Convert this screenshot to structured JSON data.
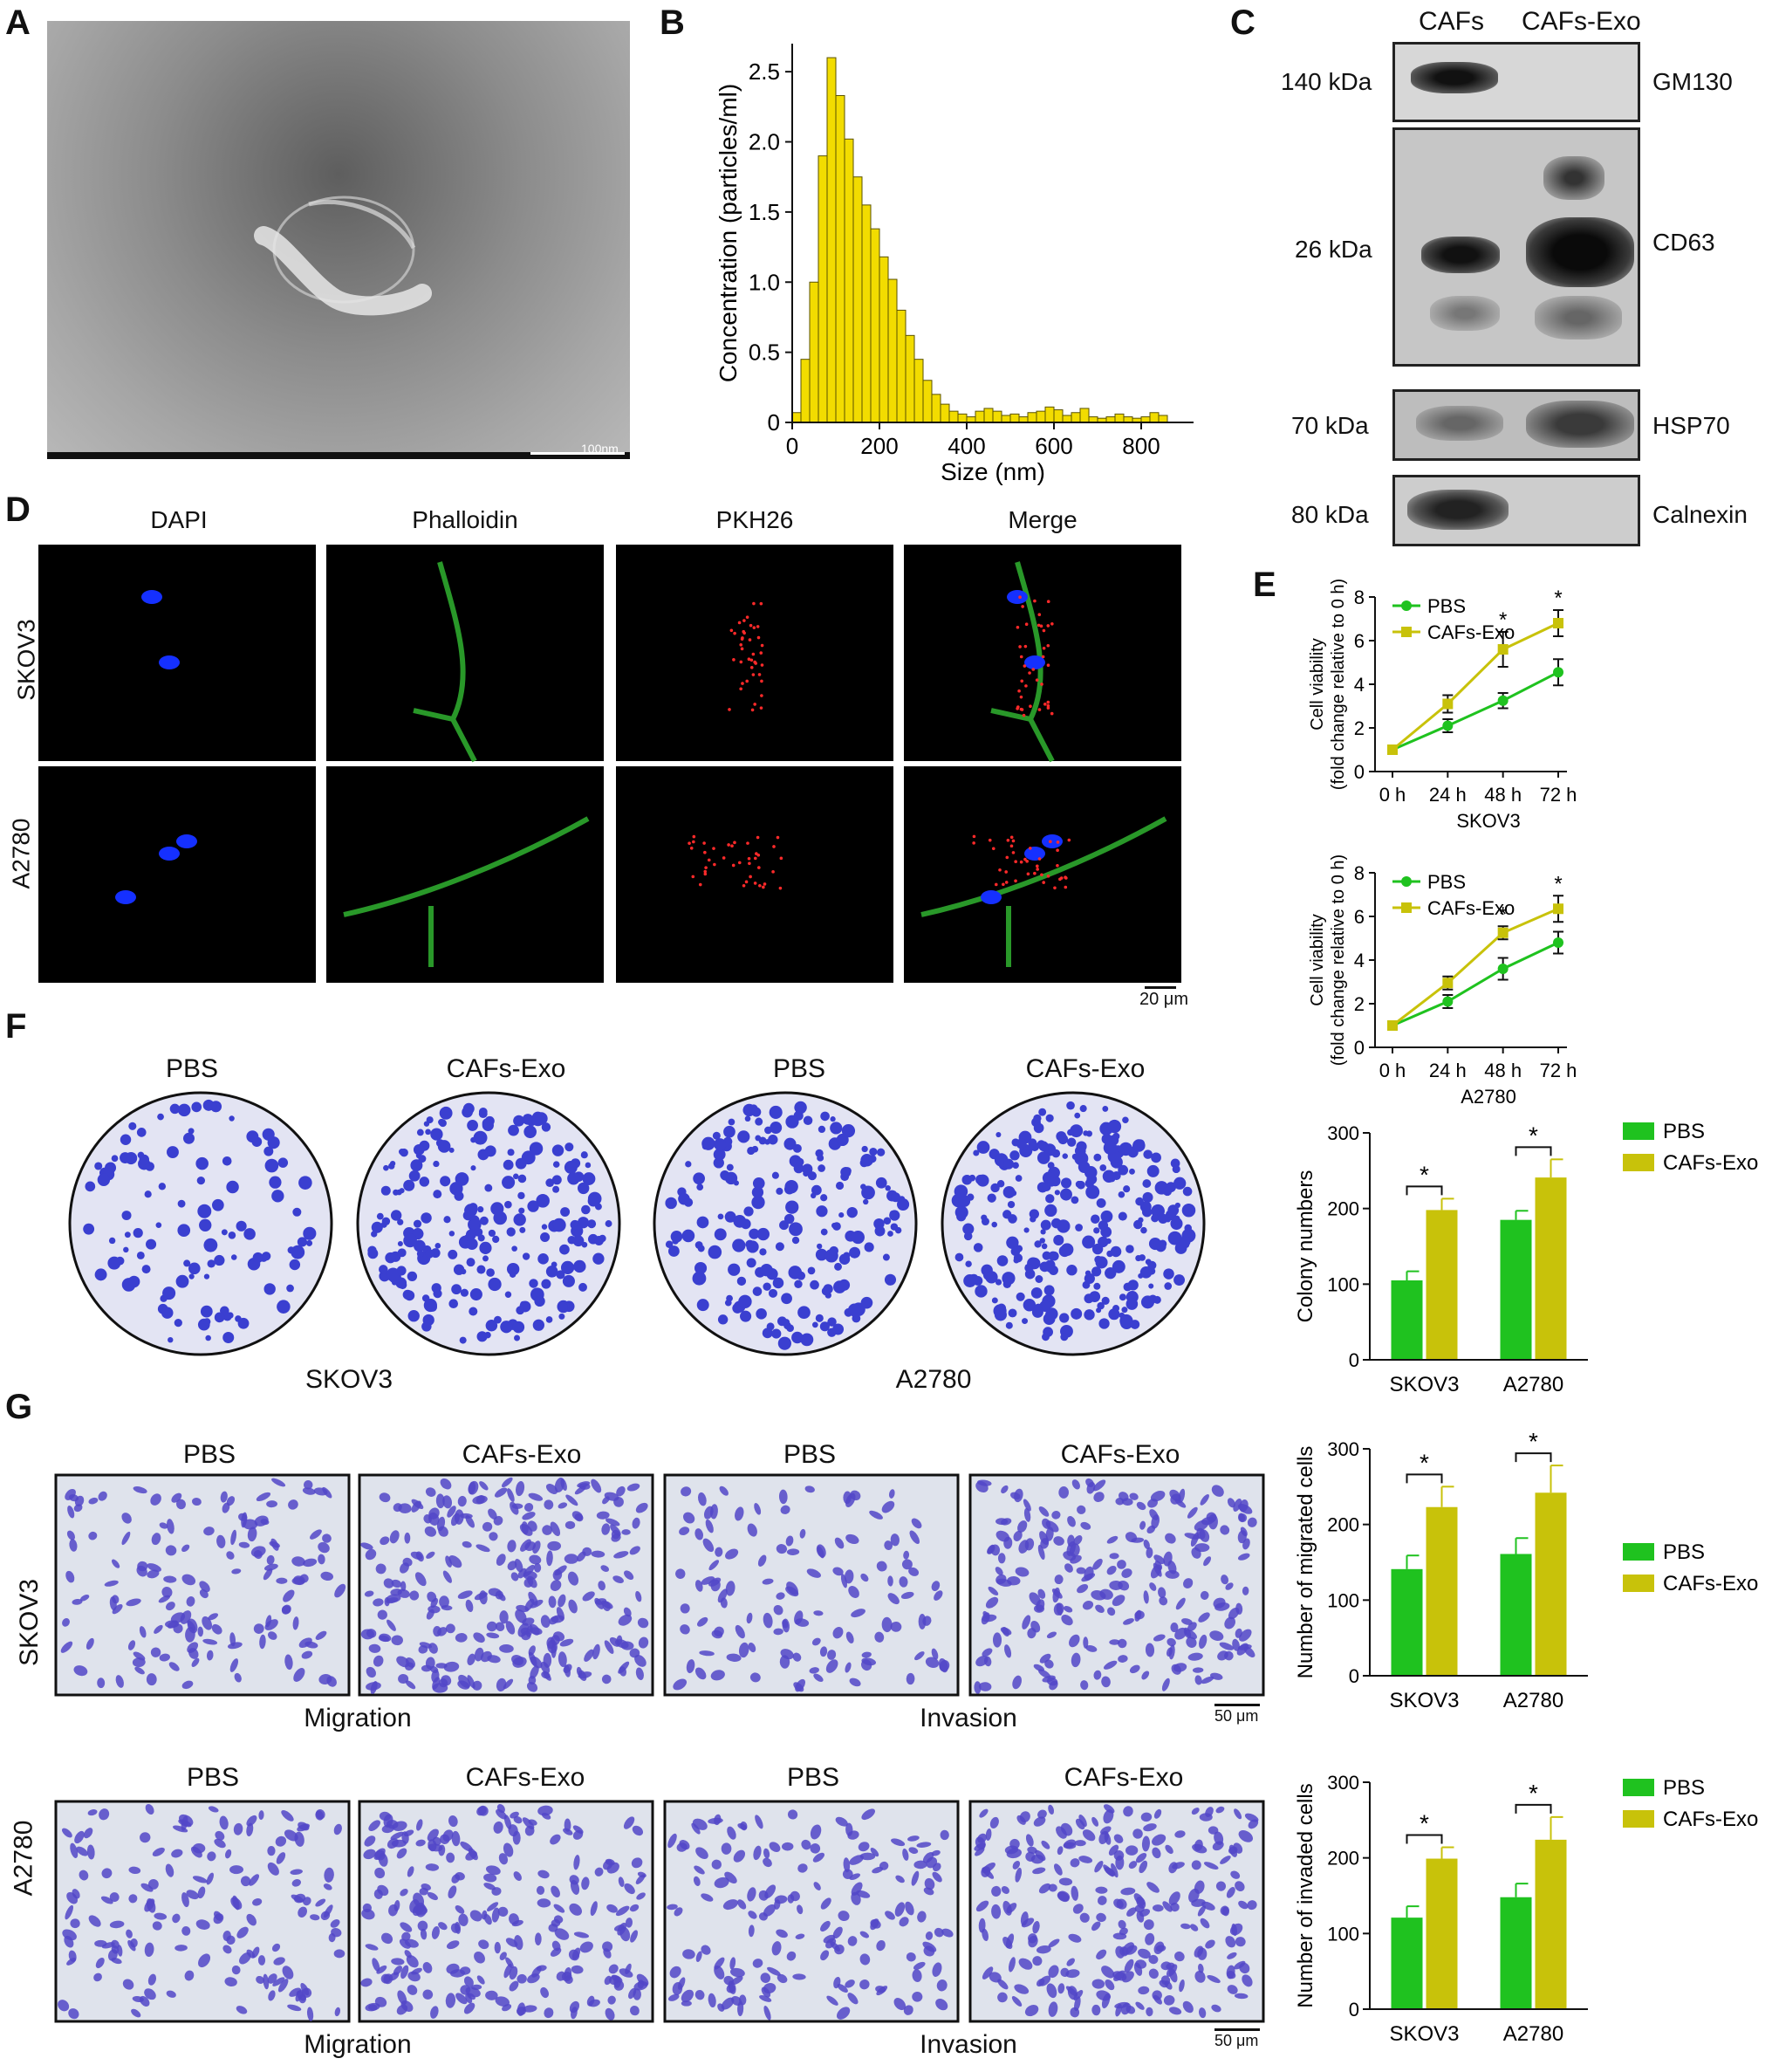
{
  "panels": {
    "A": "A",
    "B": "B",
    "C": "C",
    "D": "D",
    "E": "E",
    "F": "F",
    "G": "G"
  },
  "panel_a": {
    "scalebar": "100nm"
  },
  "panel_c": {
    "columns": [
      "CAFs",
      "CAFs-Exo"
    ],
    "rows": [
      {
        "kda": "140 kDa",
        "protein": "GM130"
      },
      {
        "kda": "26 kDa",
        "protein": "CD63"
      },
      {
        "kda": "70 kDa",
        "protein": "HSP70"
      },
      {
        "kda": "80 kDa",
        "protein": "Calnexin"
      }
    ]
  },
  "panel_d": {
    "columns": [
      "DAPI",
      "Phalloidin",
      "PKH26",
      "Merge"
    ],
    "rows": [
      "SKOV3",
      "A2780"
    ],
    "scalebar": "20 μm"
  },
  "panel_f": {
    "plates": [
      "PBS",
      "CAFs-Exo",
      "PBS",
      "CAFs-Exo"
    ],
    "groups": [
      "SKOV3",
      "A2780"
    ]
  },
  "panel_g": {
    "columns": [
      "PBS",
      "CAFs-Exo",
      "PBS",
      "CAFs-Exo"
    ],
    "rows": [
      "SKOV3",
      "A2780"
    ],
    "sublabels": [
      "Migration",
      "Invasion"
    ],
    "scalebar": "50 μm"
  },
  "colors": {
    "pbs": "#1fc21f",
    "cafs_exo": "#c8c20a",
    "histogram": "#f2dc00",
    "wells": "#3a3fd0"
  },
  "chart_data": [
    {
      "id": "B",
      "type": "bar",
      "xlabel": "Size (nm)",
      "ylabel": "Concentration (particles/ml)",
      "xlim": [
        0,
        920
      ],
      "ylim": [
        0,
        2.7
      ],
      "xticks": [
        0,
        200,
        400,
        600,
        800
      ],
      "yticks": [
        0,
        0.5,
        1.0,
        1.5,
        2.0,
        2.5
      ],
      "ytick_labels": [
        "0",
        "0.5",
        "1.0",
        "1.5",
        "2.0",
        "2.5"
      ],
      "bin_width": 20,
      "bins": [
        10,
        30,
        50,
        70,
        90,
        110,
        130,
        150,
        170,
        190,
        210,
        230,
        250,
        270,
        290,
        310,
        330,
        350,
        370,
        390,
        410,
        430,
        450,
        470,
        490,
        510,
        530,
        550,
        570,
        590,
        610,
        630,
        650,
        670,
        690,
        710,
        730,
        750,
        770,
        790,
        810,
        830,
        850
      ],
      "values": [
        0.07,
        0.45,
        1.0,
        1.9,
        2.6,
        2.33,
        2.02,
        1.75,
        1.55,
        1.38,
        1.18,
        1.02,
        0.8,
        0.62,
        0.45,
        0.3,
        0.2,
        0.13,
        0.08,
        0.06,
        0.04,
        0.08,
        0.1,
        0.08,
        0.05,
        0.06,
        0.04,
        0.07,
        0.08,
        0.11,
        0.09,
        0.05,
        0.07,
        0.1,
        0.04,
        0.03,
        0.04,
        0.06,
        0.04,
        0.03,
        0.04,
        0.07,
        0.05
      ]
    },
    {
      "id": "E-top",
      "type": "line",
      "categories": [
        "0 h",
        "24 h",
        "48 h",
        "72 h"
      ],
      "xlabel": "SKOV3",
      "ylabel": "Cell viability\n(fold change relative to 0 h)",
      "ylim": [
        0,
        8
      ],
      "yticks": [
        0,
        2,
        4,
        6,
        8
      ],
      "series": [
        {
          "name": "PBS",
          "values": [
            1.0,
            2.1,
            3.25,
            4.55
          ],
          "errors": [
            0.1,
            0.3,
            0.35,
            0.6
          ]
        },
        {
          "name": "CAFs-Exo",
          "values": [
            1.0,
            3.1,
            5.6,
            6.8
          ],
          "errors": [
            0.1,
            0.4,
            0.8,
            0.6
          ]
        }
      ],
      "significance": [
        "",
        "",
        "*",
        "*"
      ]
    },
    {
      "id": "E-bottom",
      "type": "line",
      "categories": [
        "0 h",
        "24 h",
        "48 h",
        "72 h"
      ],
      "xlabel": "A2780",
      "ylabel": "Cell viability\n(fold change relative to 0 h)",
      "ylim": [
        0,
        8
      ],
      "yticks": [
        0,
        2,
        4,
        6,
        8
      ],
      "series": [
        {
          "name": "PBS",
          "values": [
            1.0,
            2.1,
            3.6,
            4.8
          ],
          "errors": [
            0.1,
            0.3,
            0.5,
            0.5
          ]
        },
        {
          "name": "CAFs-Exo",
          "values": [
            1.0,
            2.95,
            5.25,
            6.35
          ],
          "errors": [
            0.1,
            0.3,
            0.3,
            0.6
          ]
        }
      ],
      "significance": [
        "",
        "",
        "*",
        "*"
      ]
    },
    {
      "id": "F-bar",
      "type": "bar",
      "categories": [
        "SKOV3",
        "A2780"
      ],
      "ylabel": "Colony numbers",
      "ylim": [
        0,
        300
      ],
      "yticks": [
        0,
        100,
        200,
        300
      ],
      "series": [
        {
          "name": "PBS",
          "values": [
            105,
            185
          ],
          "errors": [
            12,
            12
          ]
        },
        {
          "name": "CAFs-Exo",
          "values": [
            198,
            241
          ],
          "errors": [
            15,
            24
          ]
        }
      ],
      "significance": [
        "*",
        "*"
      ]
    },
    {
      "id": "G-migrated",
      "type": "bar",
      "categories": [
        "SKOV3",
        "A2780"
      ],
      "ylabel": "Number of migrated cells",
      "ylim": [
        0,
        300
      ],
      "yticks": [
        0,
        100,
        200,
        300
      ],
      "series": [
        {
          "name": "PBS",
          "values": [
            141,
            161
          ],
          "errors": [
            18,
            21
          ]
        },
        {
          "name": "CAFs-Exo",
          "values": [
            223,
            242
          ],
          "errors": [
            27,
            36
          ]
        }
      ],
      "significance": [
        "*",
        "*"
      ]
    },
    {
      "id": "G-invaded",
      "type": "bar",
      "categories": [
        "SKOV3",
        "A2780"
      ],
      "ylabel": "Number of invaded cells",
      "ylim": [
        0,
        300
      ],
      "yticks": [
        0,
        100,
        200,
        300
      ],
      "series": [
        {
          "name": "PBS",
          "values": [
            121,
            148
          ],
          "errors": [
            15,
            18
          ]
        },
        {
          "name": "CAFs-Exo",
          "values": [
            199,
            224
          ],
          "errors": [
            15,
            30
          ]
        }
      ],
      "significance": [
        "*",
        "*"
      ]
    }
  ]
}
